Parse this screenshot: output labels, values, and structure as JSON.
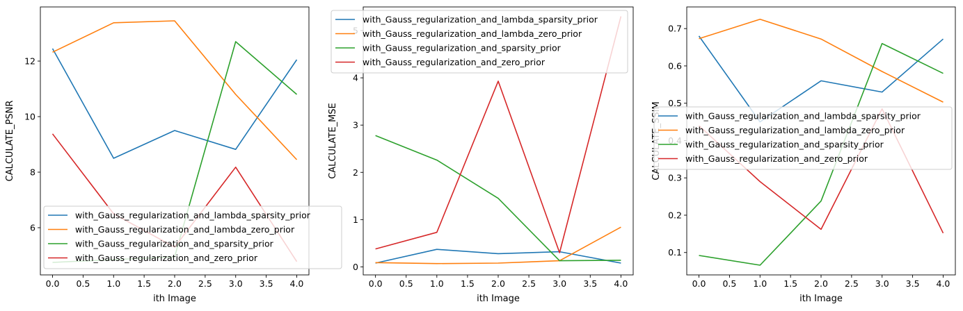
{
  "colors": {
    "series": [
      "#1f77b4",
      "#ff7f0e",
      "#2ca02c",
      "#d62728"
    ],
    "axis": "#000000",
    "legend_border": "#cccccc",
    "background": "#ffffff"
  },
  "chart_data": [
    {
      "type": "line",
      "xlabel": "ith Image",
      "ylabel": "CALCULATE_PSNR",
      "xlim": [
        -0.2,
        4.2
      ],
      "ylim": [
        4.3,
        13.95
      ],
      "xticks": [
        0,
        0.5,
        1,
        1.5,
        2,
        2.5,
        3,
        3.5,
        4
      ],
      "xtick_labels": [
        "0.0",
        "0.5",
        "1.0",
        "1.5",
        "2.0",
        "2.5",
        "3.0",
        "3.5",
        "4.0"
      ],
      "yticks": [
        6,
        8,
        10,
        12
      ],
      "ytick_labels": [
        "6",
        "8",
        "10",
        "12"
      ],
      "legend_position": "lower-left",
      "x": [
        0,
        1,
        2,
        3,
        4
      ],
      "series": [
        {
          "name": "with_Gauss_regularization_and_lambda_sparsity_prior",
          "values": [
            12.45,
            8.5,
            9.5,
            8.82,
            12.05
          ]
        },
        {
          "name": "with_Gauss_regularization_and_lambda_zero_prior",
          "values": [
            12.32,
            13.38,
            13.45,
            10.8,
            8.45
          ]
        },
        {
          "name": "with_Gauss_regularization_and_sparsity_prior",
          "values": [
            4.75,
            4.85,
            4.95,
            12.7,
            10.8
          ]
        },
        {
          "name": "with_Gauss_regularization_and_zero_prior",
          "values": [
            9.38,
            6.5,
            5.3,
            8.18,
            4.78
          ]
        }
      ]
    },
    {
      "type": "line",
      "xlabel": "ith Image",
      "ylabel": "CALCULATE_MSE",
      "xlim": [
        -0.2,
        4.2
      ],
      "ylim": [
        -0.17,
        5.5
      ],
      "xticks": [
        0,
        0.5,
        1,
        1.5,
        2,
        2.5,
        3,
        3.5,
        4
      ],
      "xtick_labels": [
        "0.0",
        "0.5",
        "1.0",
        "1.5",
        "2.0",
        "2.5",
        "3.0",
        "3.5",
        "4.0"
      ],
      "yticks": [
        0,
        1,
        2,
        3,
        4,
        5
      ],
      "ytick_labels": [
        "0",
        "1",
        "2",
        "3",
        "4",
        "5"
      ],
      "legend_position": "upper-center",
      "x": [
        0,
        1,
        2,
        3,
        4
      ],
      "series": [
        {
          "name": "with_Gauss_regularization_and_lambda_sparsity_prior",
          "values": [
            0.08,
            0.37,
            0.28,
            0.32,
            0.08
          ]
        },
        {
          "name": "with_Gauss_regularization_and_lambda_zero_prior",
          "values": [
            0.09,
            0.07,
            0.08,
            0.13,
            0.84
          ]
        },
        {
          "name": "with_Gauss_regularization_and_sparsity_prior",
          "values": [
            2.78,
            2.26,
            1.45,
            0.13,
            0.14
          ]
        },
        {
          "name": "with_Gauss_regularization_and_zero_prior",
          "values": [
            0.38,
            0.73,
            3.93,
            0.3,
            5.3
          ]
        }
      ]
    },
    {
      "type": "line",
      "xlabel": "ith Image",
      "ylabel": "CALCULATE_SSIM",
      "xlim": [
        -0.2,
        4.2
      ],
      "ylim": [
        0.04,
        0.758
      ],
      "xticks": [
        0,
        0.5,
        1,
        1.5,
        2,
        2.5,
        3,
        3.5,
        4
      ],
      "xtick_labels": [
        "0.0",
        "0.5",
        "1.0",
        "1.5",
        "2.0",
        "2.5",
        "3.0",
        "3.5",
        "4.0"
      ],
      "yticks": [
        0.1,
        0.2,
        0.3,
        0.4,
        0.5,
        0.6,
        0.7
      ],
      "ytick_labels": [
        "0.1",
        "0.2",
        "0.3",
        "0.4",
        "0.5",
        "0.6",
        "0.7"
      ],
      "legend_position": "center-right",
      "x": [
        0,
        1,
        2,
        3,
        4
      ],
      "series": [
        {
          "name": "with_Gauss_regularization_and_lambda_sparsity_prior",
          "values": [
            0.68,
            0.45,
            0.56,
            0.53,
            0.672
          ]
        },
        {
          "name": "with_Gauss_regularization_and_lambda_zero_prior",
          "values": [
            0.673,
            0.725,
            0.672,
            0.585,
            0.503
          ]
        },
        {
          "name": "with_Gauss_regularization_and_sparsity_prior",
          "values": [
            0.092,
            0.066,
            0.238,
            0.66,
            0.58
          ]
        },
        {
          "name": "with_Gauss_regularization_and_zero_prior",
          "values": [
            0.44,
            0.29,
            0.162,
            0.485,
            0.152
          ]
        }
      ]
    }
  ]
}
